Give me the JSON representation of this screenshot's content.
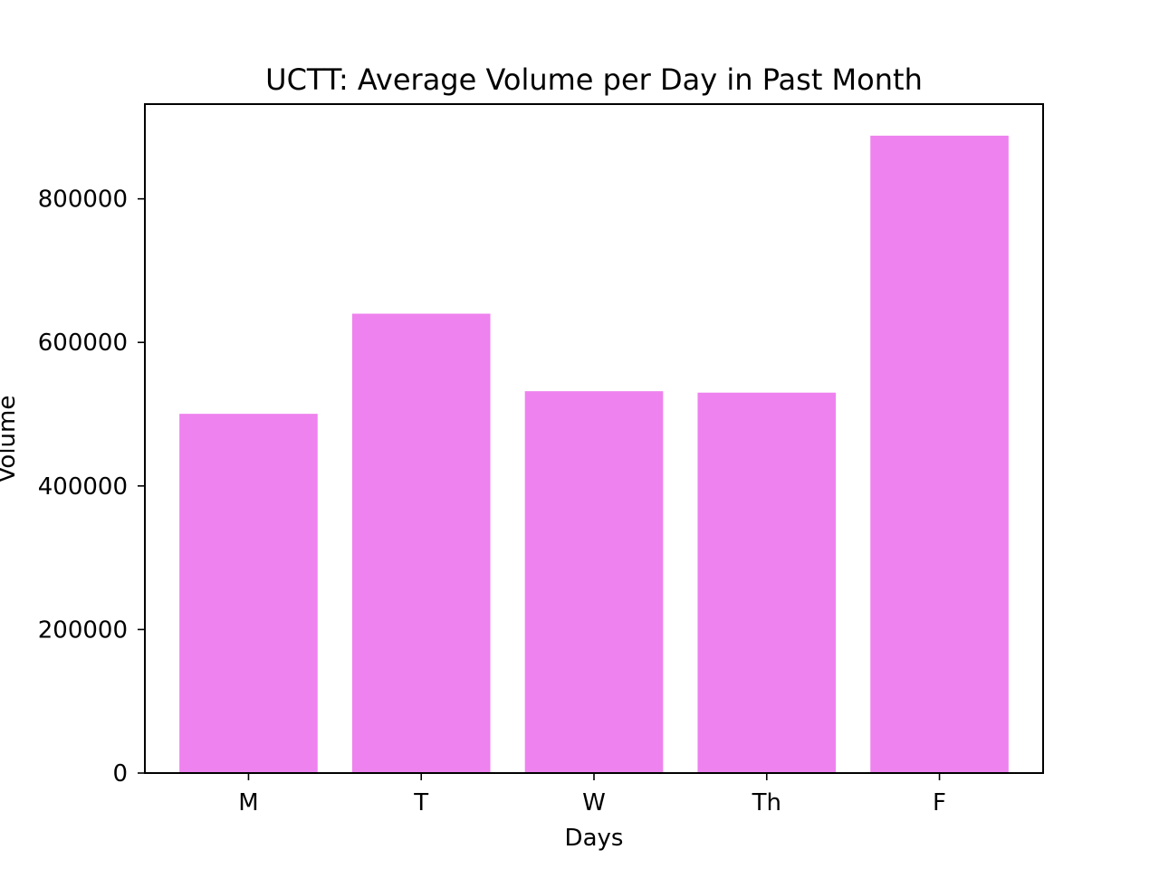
{
  "chart_data": {
    "type": "bar",
    "title": "UCTT: Average Volume per Day in Past Month",
    "xlabel": "Days",
    "ylabel": "Volume",
    "categories": [
      "M",
      "T",
      "W",
      "Th",
      "F"
    ],
    "values": [
      500500,
      640000,
      532000,
      530000,
      888000
    ],
    "ylim": [
      0,
      932000
    ],
    "yticks": [
      0,
      200000,
      400000,
      600000,
      800000
    ],
    "ytick_labels": [
      "0",
      "200000",
      "400000",
      "600000",
      "800000"
    ],
    "grid": false,
    "bar_color": "#ee82ee"
  }
}
